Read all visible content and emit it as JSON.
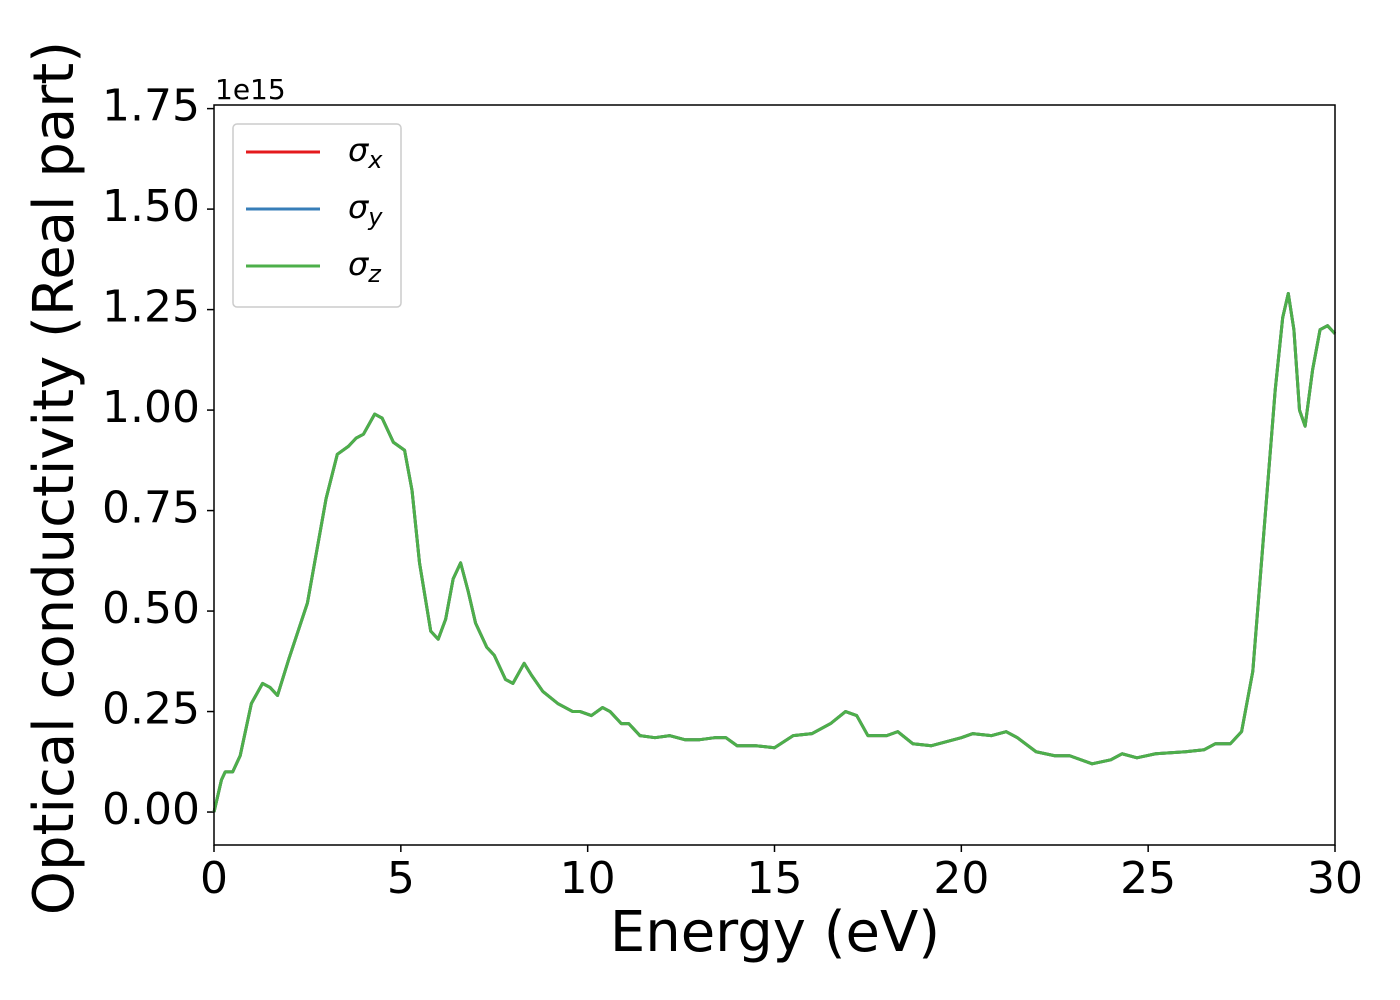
{
  "chart_data": {
    "type": "line",
    "xlabel": "Energy (eV)",
    "ylabel": "Optical conductivity (Real part)",
    "y_offset_label": "1e15",
    "x": [
      0,
      0.2,
      0.3,
      0.5,
      0.7,
      1.0,
      1.3,
      1.5,
      1.7,
      2.0,
      2.5,
      3.0,
      3.3,
      3.6,
      3.8,
      4.0,
      4.3,
      4.5,
      4.8,
      5.1,
      5.3,
      5.5,
      5.8,
      6.0,
      6.2,
      6.4,
      6.6,
      6.8,
      7.0,
      7.3,
      7.5,
      7.8,
      8.0,
      8.3,
      8.5,
      8.8,
      9.2,
      9.6,
      9.8,
      10.1,
      10.4,
      10.6,
      10.9,
      11.1,
      11.4,
      11.8,
      12.2,
      12.6,
      13.0,
      13.4,
      13.7,
      14.0,
      14.5,
      15.0,
      15.5,
      16.0,
      16.5,
      16.9,
      17.2,
      17.5,
      18.0,
      18.3,
      18.7,
      19.2,
      19.6,
      20.0,
      20.3,
      20.8,
      21.2,
      21.5,
      22.0,
      22.5,
      22.9,
      23.5,
      24.0,
      24.3,
      24.7,
      25.2,
      26.0,
      26.5,
      26.8,
      27.2,
      27.5,
      27.8,
      28.1,
      28.4,
      28.6,
      28.75,
      28.9,
      29.05,
      29.2,
      29.4,
      29.6,
      29.8,
      30.0
    ],
    "series": [
      {
        "name": "σx",
        "color": "#e41a1c",
        "values": [
          0,
          0.08,
          0.1,
          0.1,
          0.14,
          0.27,
          0.32,
          0.31,
          0.29,
          0.38,
          0.52,
          0.78,
          0.89,
          0.91,
          0.93,
          0.94,
          0.99,
          0.98,
          0.92,
          0.9,
          0.8,
          0.62,
          0.45,
          0.43,
          0.48,
          0.58,
          0.62,
          0.55,
          0.47,
          0.41,
          0.39,
          0.33,
          0.32,
          0.37,
          0.34,
          0.3,
          0.27,
          0.25,
          0.25,
          0.24,
          0.26,
          0.25,
          0.22,
          0.22,
          0.19,
          0.185,
          0.19,
          0.18,
          0.18,
          0.185,
          0.185,
          0.165,
          0.165,
          0.16,
          0.19,
          0.195,
          0.22,
          0.25,
          0.24,
          0.19,
          0.19,
          0.2,
          0.17,
          0.165,
          0.175,
          0.185,
          0.195,
          0.19,
          0.2,
          0.185,
          0.15,
          0.14,
          0.14,
          0.12,
          0.13,
          0.145,
          0.135,
          0.145,
          0.15,
          0.155,
          0.17,
          0.17,
          0.2,
          0.35,
          0.7,
          1.05,
          1.23,
          1.29,
          1.2,
          1.0,
          0.96,
          1.1,
          1.2,
          1.21,
          1.19
        ]
      },
      {
        "name": "σy",
        "color": "#377eb8",
        "values": [
          0,
          0.08,
          0.1,
          0.1,
          0.14,
          0.27,
          0.32,
          0.31,
          0.29,
          0.38,
          0.52,
          0.78,
          0.89,
          0.91,
          0.93,
          0.94,
          0.99,
          0.98,
          0.92,
          0.9,
          0.8,
          0.62,
          0.45,
          0.43,
          0.48,
          0.58,
          0.62,
          0.55,
          0.47,
          0.41,
          0.39,
          0.33,
          0.32,
          0.37,
          0.34,
          0.3,
          0.27,
          0.25,
          0.25,
          0.24,
          0.26,
          0.25,
          0.22,
          0.22,
          0.19,
          0.185,
          0.19,
          0.18,
          0.18,
          0.185,
          0.185,
          0.165,
          0.165,
          0.16,
          0.19,
          0.195,
          0.22,
          0.25,
          0.24,
          0.19,
          0.19,
          0.2,
          0.17,
          0.165,
          0.175,
          0.185,
          0.195,
          0.19,
          0.2,
          0.185,
          0.15,
          0.14,
          0.14,
          0.12,
          0.13,
          0.145,
          0.135,
          0.145,
          0.15,
          0.155,
          0.17,
          0.17,
          0.2,
          0.35,
          0.7,
          1.05,
          1.23,
          1.29,
          1.2,
          1.0,
          0.96,
          1.1,
          1.2,
          1.21,
          1.19
        ]
      },
      {
        "name": "σz",
        "color": "#4daf4a",
        "values": [
          0,
          0.08,
          0.1,
          0.1,
          0.14,
          0.27,
          0.32,
          0.31,
          0.29,
          0.38,
          0.52,
          0.78,
          0.89,
          0.91,
          0.93,
          0.94,
          0.99,
          0.98,
          0.92,
          0.9,
          0.8,
          0.62,
          0.45,
          0.43,
          0.48,
          0.58,
          0.62,
          0.55,
          0.47,
          0.41,
          0.39,
          0.33,
          0.32,
          0.37,
          0.34,
          0.3,
          0.27,
          0.25,
          0.25,
          0.24,
          0.26,
          0.25,
          0.22,
          0.22,
          0.19,
          0.185,
          0.19,
          0.18,
          0.18,
          0.185,
          0.185,
          0.165,
          0.165,
          0.16,
          0.19,
          0.195,
          0.22,
          0.25,
          0.24,
          0.19,
          0.19,
          0.2,
          0.17,
          0.165,
          0.175,
          0.185,
          0.195,
          0.19,
          0.2,
          0.185,
          0.15,
          0.14,
          0.14,
          0.12,
          0.13,
          0.145,
          0.135,
          0.145,
          0.15,
          0.155,
          0.17,
          0.17,
          0.2,
          0.35,
          0.7,
          1.05,
          1.23,
          1.29,
          1.2,
          1.0,
          0.96,
          1.1,
          1.2,
          1.21,
          1.19
        ]
      }
    ],
    "xlim": [
      0,
      30
    ],
    "xticks": [
      0,
      5,
      10,
      15,
      20,
      25,
      30
    ],
    "ylim": [
      -0.082,
      1.759
    ],
    "yticks": [
      {
        "value": 0,
        "label": "0.00"
      },
      {
        "value": 0.25,
        "label": "0.25"
      },
      {
        "value": 0.5,
        "label": "0.50"
      },
      {
        "value": 0.75,
        "label": "0.75"
      },
      {
        "value": 1,
        "label": "1.00"
      },
      {
        "value": 1.25,
        "label": "1.25"
      },
      {
        "value": 1.5,
        "label": "1.50"
      },
      {
        "value": 1.75,
        "label": "1.75"
      }
    ],
    "legend": "upper left",
    "grid": false
  }
}
